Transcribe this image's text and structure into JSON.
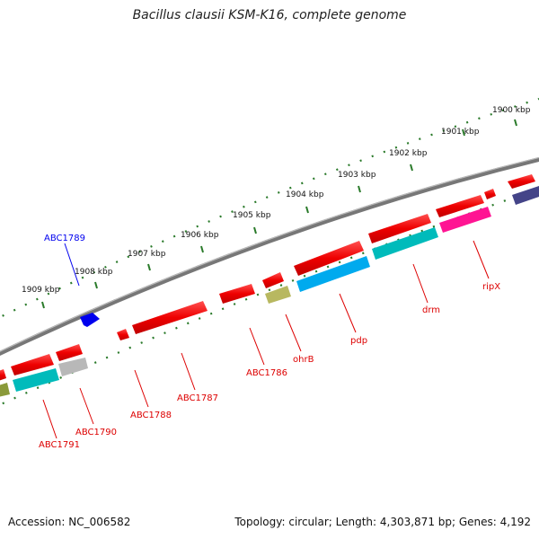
{
  "title": "Bacillus clausii KSM-K16, complete genome",
  "footer": {
    "accession": "Accession: NC_006582",
    "topology": "Topology: circular; Length: 4,303,871 bp; Genes: 4,192"
  },
  "ticks": [
    "1900 kbp",
    "1901 kbp",
    "1902 kbp",
    "1903 kbp",
    "1904 kbp",
    "1905 kbp",
    "1906 kbp",
    "1907 kbp",
    "1908 kbp",
    "1909 kbp"
  ],
  "genes": [
    {
      "label": "ABC1789",
      "color": "#0000ee"
    },
    {
      "label": "ripX",
      "color": "#dd0000"
    },
    {
      "label": "drm",
      "color": "#dd0000"
    },
    {
      "label": "pdp",
      "color": "#dd0000"
    },
    {
      "label": "ohrB",
      "color": "#dd0000"
    },
    {
      "label": "ABC1786",
      "color": "#dd0000"
    },
    {
      "label": "ABC1787",
      "color": "#dd0000"
    },
    {
      "label": "ABC1788",
      "color": "#dd0000"
    },
    {
      "label": "ABC1790",
      "color": "#dd0000"
    },
    {
      "label": "ABC1791",
      "color": "#dd0000"
    }
  ],
  "colors": {
    "backbone": "#888888",
    "tick": "#2a7a2a",
    "feature_red": "#ee0000",
    "feature_cyan": "#00cccc",
    "feature_skyblue": "#00aaee",
    "feature_magenta": "#ff1493",
    "feature_olive": "#b8b860",
    "feature_gray": "#b8b8b8",
    "feature_navy": "#444488",
    "feature_blue": "#0000ee"
  }
}
